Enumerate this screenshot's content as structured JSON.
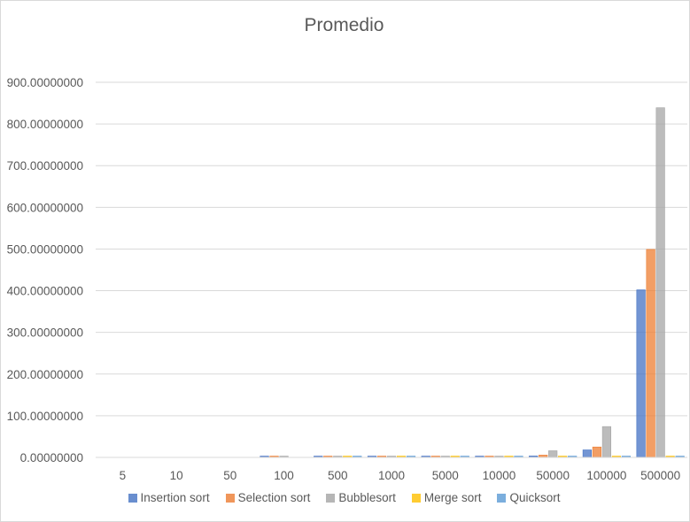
{
  "chart_data": {
    "type": "bar",
    "title": "Promedio",
    "categories": [
      "5",
      "10",
      "50",
      "100",
      "500",
      "1000",
      "5000",
      "10000",
      "50000",
      "100000",
      "500000"
    ],
    "y_ticks": [
      "0.00000000",
      "100.00000000",
      "200.00000000",
      "300.00000000",
      "400.00000000",
      "500.00000000",
      "600.00000000",
      "700.00000000",
      "800.00000000",
      "900.00000000"
    ],
    "ylim": [
      0,
      900
    ],
    "grid": true,
    "legend_position": "bottom",
    "series": [
      {
        "name": "Insertion sort",
        "color": "#4472c4",
        "values": [
          0.0,
          0.0,
          0.0,
          0.1,
          0.5,
          0.5,
          0.5,
          0.5,
          3.5,
          18.0,
          402.0
        ]
      },
      {
        "name": "Selection sort",
        "color": "#ed7d31",
        "values": [
          0.0,
          0.0,
          0.0,
          0.1,
          0.5,
          0.5,
          0.5,
          0.5,
          5.5,
          25.0,
          499.0
        ]
      },
      {
        "name": "Bubblesort",
        "color": "#a5a5a5",
        "values": [
          0.0,
          0.0,
          0.0,
          0.1,
          0.5,
          0.5,
          0.5,
          0.5,
          16.0,
          74.0,
          839.0
        ]
      },
      {
        "name": "Merge sort",
        "color": "#ffc000",
        "values": [
          0.0,
          0.0,
          0.0,
          0.0,
          0.3,
          0.3,
          0.3,
          0.3,
          0.5,
          0.6,
          0.8
        ]
      },
      {
        "name": "Quicksort",
        "color": "#5b9bd5",
        "values": [
          0.0,
          0.0,
          0.0,
          0.0,
          0.3,
          0.3,
          0.3,
          0.3,
          0.5,
          0.6,
          0.8
        ]
      }
    ]
  }
}
